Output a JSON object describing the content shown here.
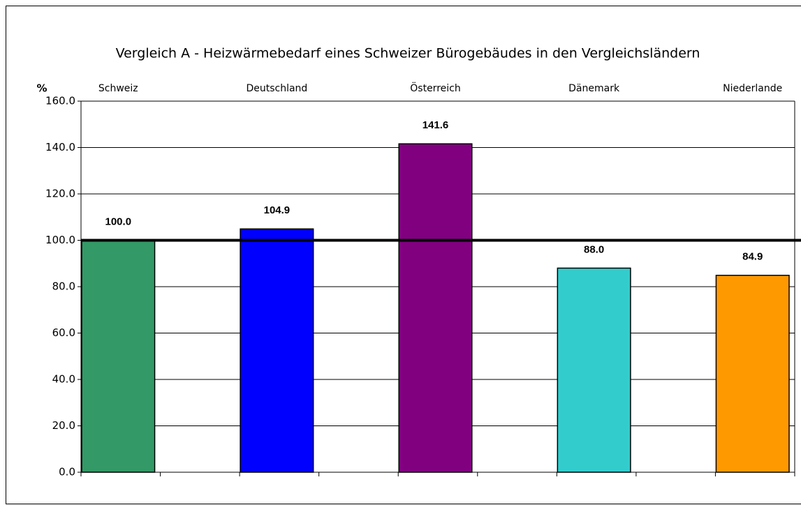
{
  "chart_data": {
    "type": "bar",
    "title": "Vergleich A - Heizwärmebedarf eines Schweizer Bürogebäudes in den Vergleichsländern",
    "y_label": "%",
    "categories": [
      "Schweiz",
      "Deutschland",
      "Österreich",
      "Dänemark",
      "Niederlande"
    ],
    "values": [
      100,
      104.9,
      141.6,
      88,
      84.9
    ],
    "value_labels": [
      "100.0",
      "104.9",
      "141.6",
      "88.0",
      "84.9"
    ],
    "colors": [
      "#339966",
      "#0000ff",
      "#800080",
      "#33cccc",
      "#ff9900"
    ],
    "reference_line": 100,
    "ylim": [
      0,
      160
    ],
    "yticks": [
      {
        "value": 0,
        "label": "0.0"
      },
      {
        "value": 20,
        "label": "20.0"
      },
      {
        "value": 40,
        "label": "40.0"
      },
      {
        "value": 60,
        "label": "60.0"
      },
      {
        "value": 80,
        "label": "80.0"
      },
      {
        "value": 100,
        "label": "100.0"
      },
      {
        "value": 120,
        "label": "120.0"
      },
      {
        "value": 140,
        "label": "140.0"
      },
      {
        "value": 160,
        "label": "160.0"
      }
    ],
    "grid": true
  }
}
